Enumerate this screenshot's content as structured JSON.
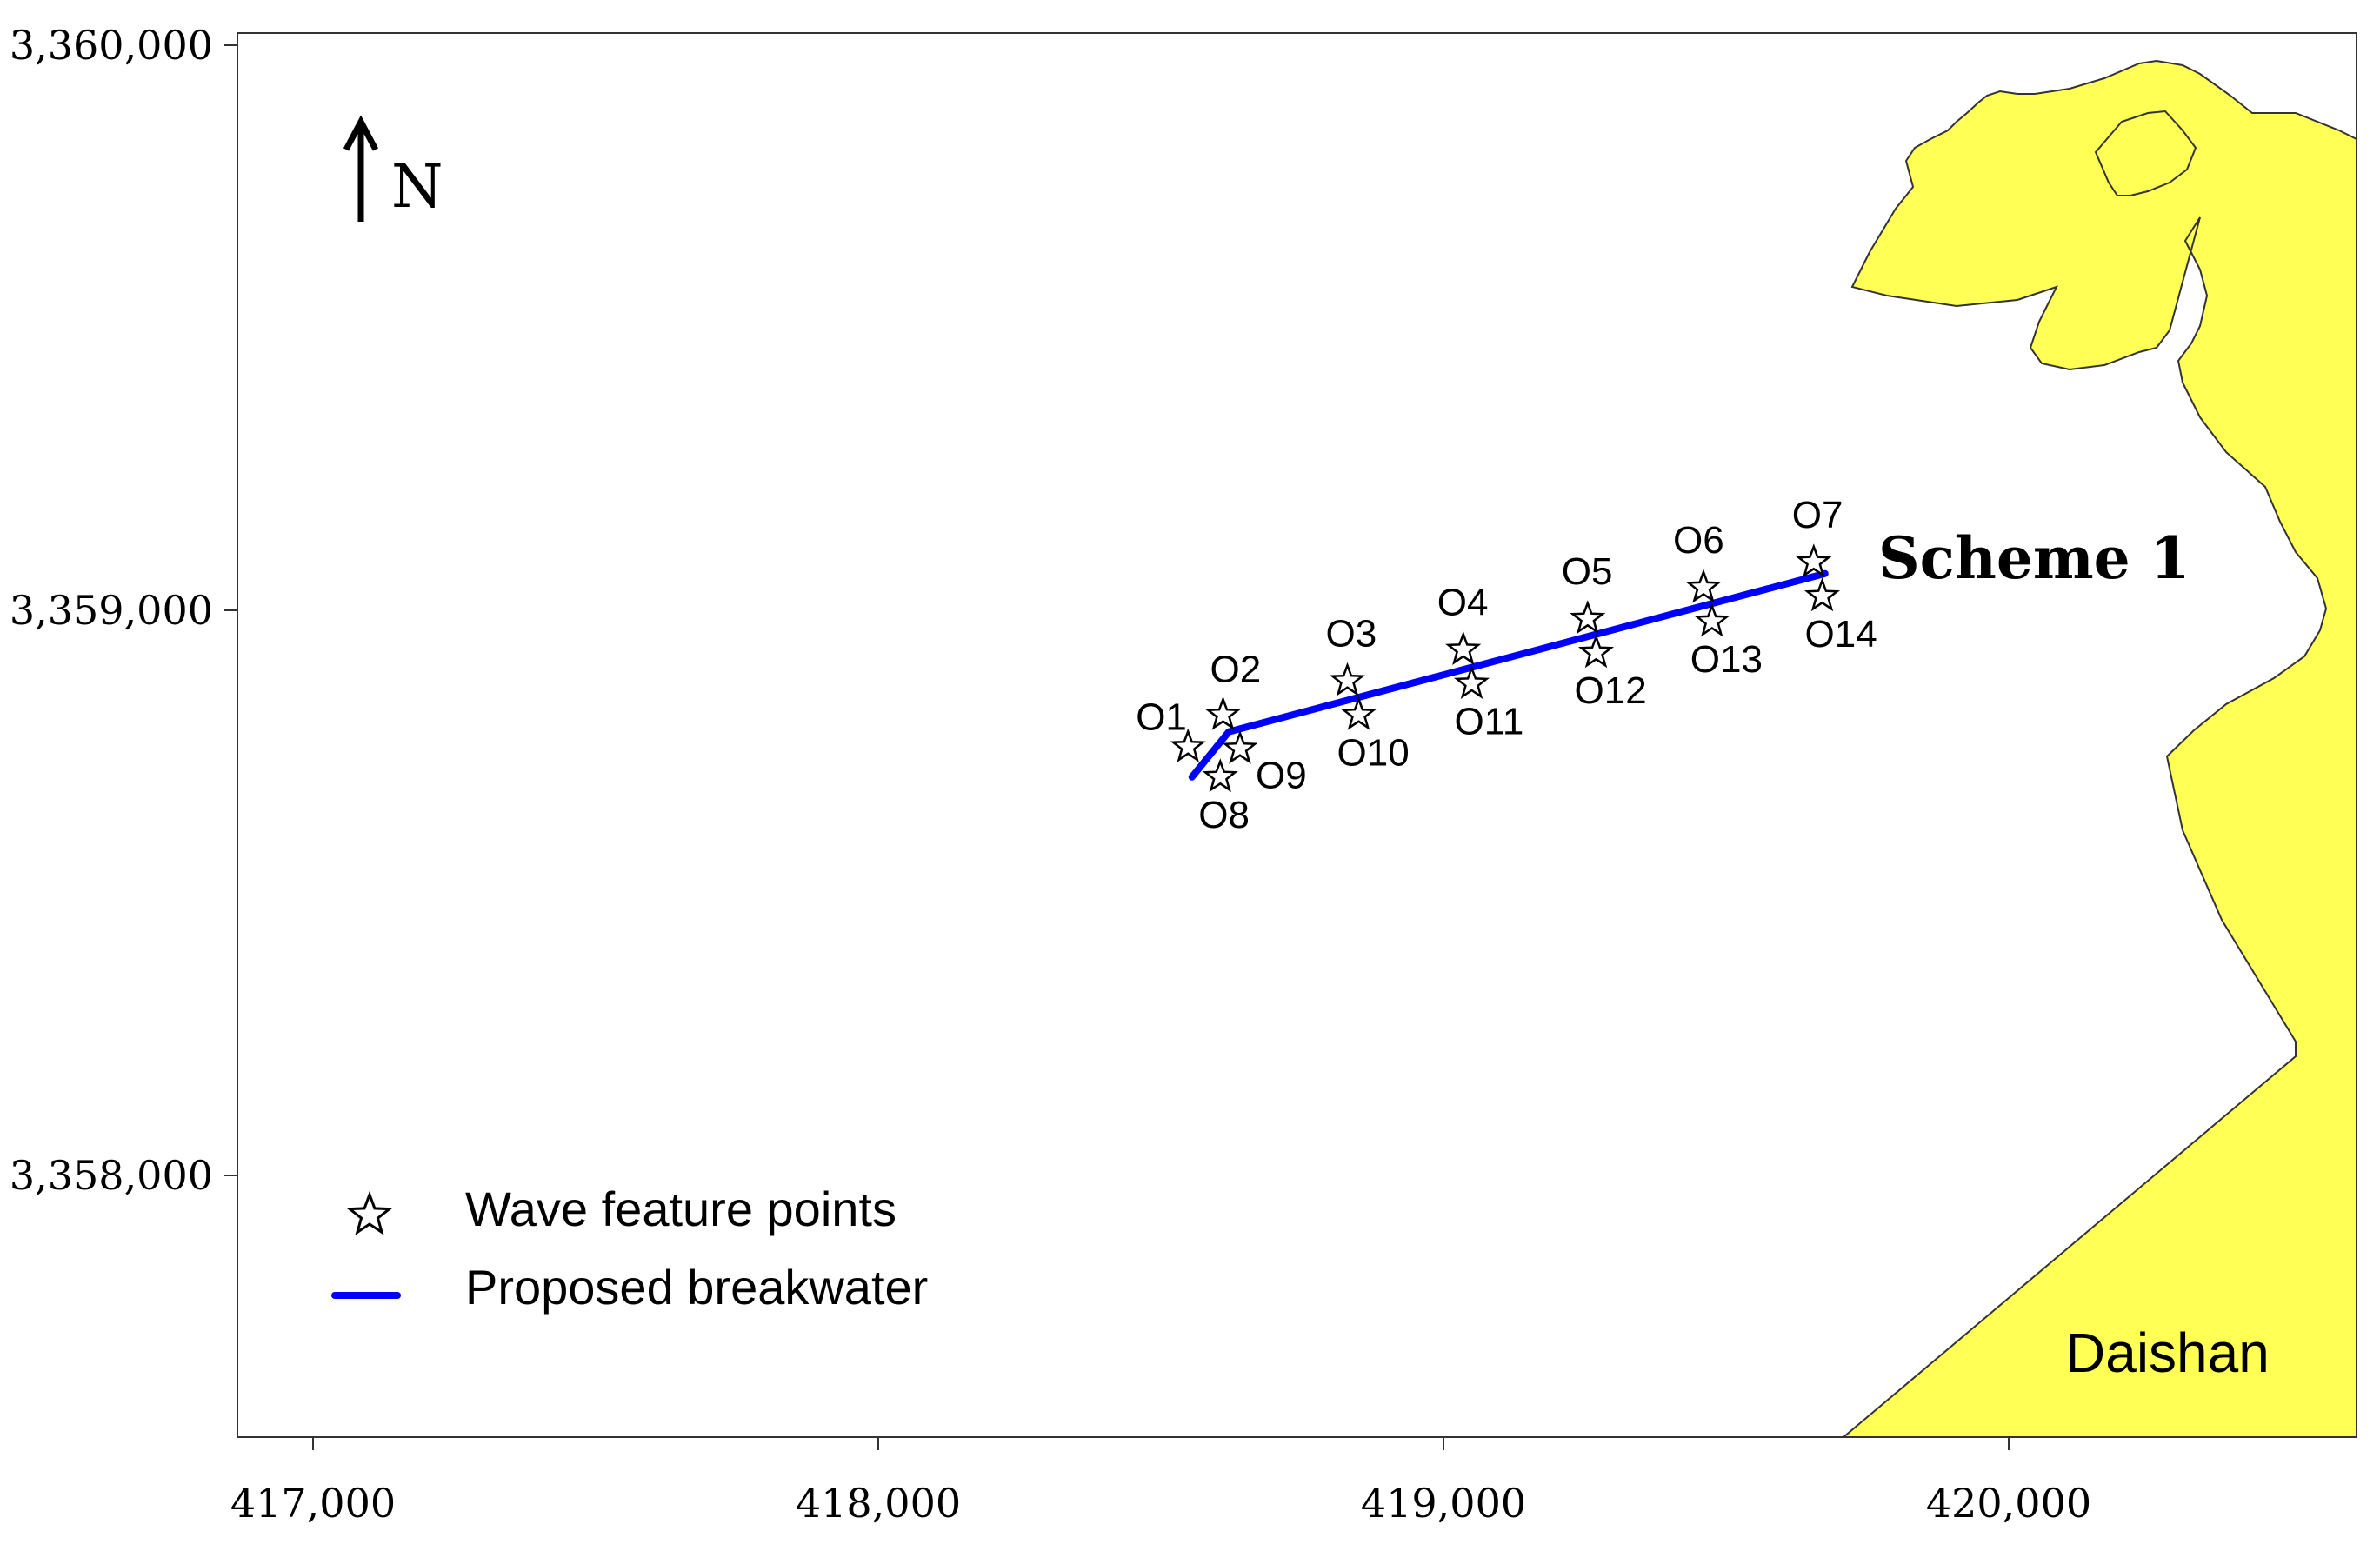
{
  "map": {
    "north_label": "N",
    "scheme_label": "Scheme 1",
    "island_label": "Daishan",
    "x_ticks": [
      "417,000",
      "418,000",
      "419,000",
      "420,000"
    ],
    "y_ticks": [
      "3,360,000",
      "3,359,000",
      "3,358,000"
    ],
    "legend": {
      "points_label": "Wave feature points",
      "line_label": "Proposed breakwater"
    },
    "colors": {
      "land": "#ffff55",
      "breakwater": "#0000ff",
      "frame": "#333333"
    },
    "points": [
      {
        "id": "O1",
        "x": 418548,
        "y": 3358758
      },
      {
        "id": "O2",
        "x": 418610,
        "y": 3358815
      },
      {
        "id": "O3",
        "x": 418830,
        "y": 3358875
      },
      {
        "id": "O4",
        "x": 419035,
        "y": 3358930
      },
      {
        "id": "O5",
        "x": 419255,
        "y": 3358985
      },
      {
        "id": "O6",
        "x": 419460,
        "y": 3359040
      },
      {
        "id": "O7",
        "x": 419655,
        "y": 3359085
      },
      {
        "id": "O8",
        "x": 418605,
        "y": 3358705
      },
      {
        "id": "O9",
        "x": 418640,
        "y": 3358755
      },
      {
        "id": "O10",
        "x": 418850,
        "y": 3358815
      },
      {
        "id": "O11",
        "x": 419050,
        "y": 3358870
      },
      {
        "id": "O12",
        "x": 419270,
        "y": 3358925
      },
      {
        "id": "O13",
        "x": 419475,
        "y": 3358980
      },
      {
        "id": "O14",
        "x": 419670,
        "y": 3359025
      }
    ],
    "breakwater": [
      {
        "x": 418555,
        "y": 3358705
      },
      {
        "x": 418620,
        "y": 3358785
      },
      {
        "x": 419675,
        "y": 3359065
      }
    ]
  }
}
